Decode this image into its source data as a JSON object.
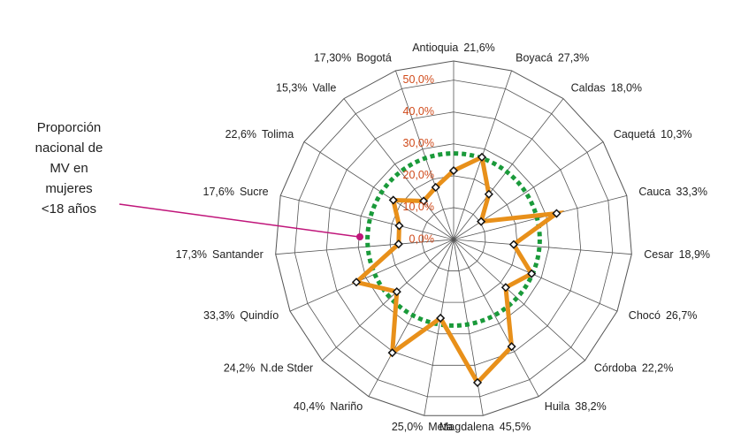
{
  "chart_data": {
    "type": "radar",
    "categories": [
      "Antioquia",
      "Boyacá",
      "Caldas",
      "Caquetá",
      "Cauca",
      "Cesar",
      "Chocó",
      "Córdoba",
      "Huila",
      "Magdalena",
      "Meta",
      "Nariño",
      "N.de Stder",
      "Quindío",
      "Santander",
      "Sucre",
      "Tolima",
      "Valle",
      "Bogotá"
    ],
    "values": [
      21.6,
      27.3,
      18.0,
      10.3,
      33.3,
      18.9,
      26.7,
      22.2,
      38.2,
      45.5,
      25.0,
      40.4,
      24.2,
      33.3,
      17.3,
      17.6,
      22.6,
      15.3,
      17.3
    ],
    "value_labels": [
      "21,6%",
      "27,3%",
      "18,0%",
      "10,3%",
      "33,3%",
      "18,9%",
      "26,7%",
      "22,2%",
      "38,2%",
      "45,5%",
      "25,0%",
      "40,4%",
      "24,2%",
      "33,3%",
      "17,3%",
      "17,6%",
      "22,6%",
      "15,3%",
      "17,30%"
    ],
    "color": "#e8901a",
    "ylim": [
      0,
      56
    ],
    "yticks": [
      {
        "value": 0,
        "label": "0,0%"
      },
      {
        "value": 10,
        "label": "10,0%"
      },
      {
        "value": 20,
        "label": "20,0%"
      },
      {
        "value": 30,
        "label": "30,0%"
      },
      {
        "value": 40,
        "label": "40,0%"
      },
      {
        "value": 50,
        "label": "50,0%"
      }
    ],
    "reference": {
      "value": 27,
      "color": "#1a9a3a"
    },
    "annotation": {
      "lines": [
        "Proporción",
        "nacional de",
        "MV en",
        "mujeres",
        "<18 años"
      ],
      "color": "#c0157a"
    }
  }
}
